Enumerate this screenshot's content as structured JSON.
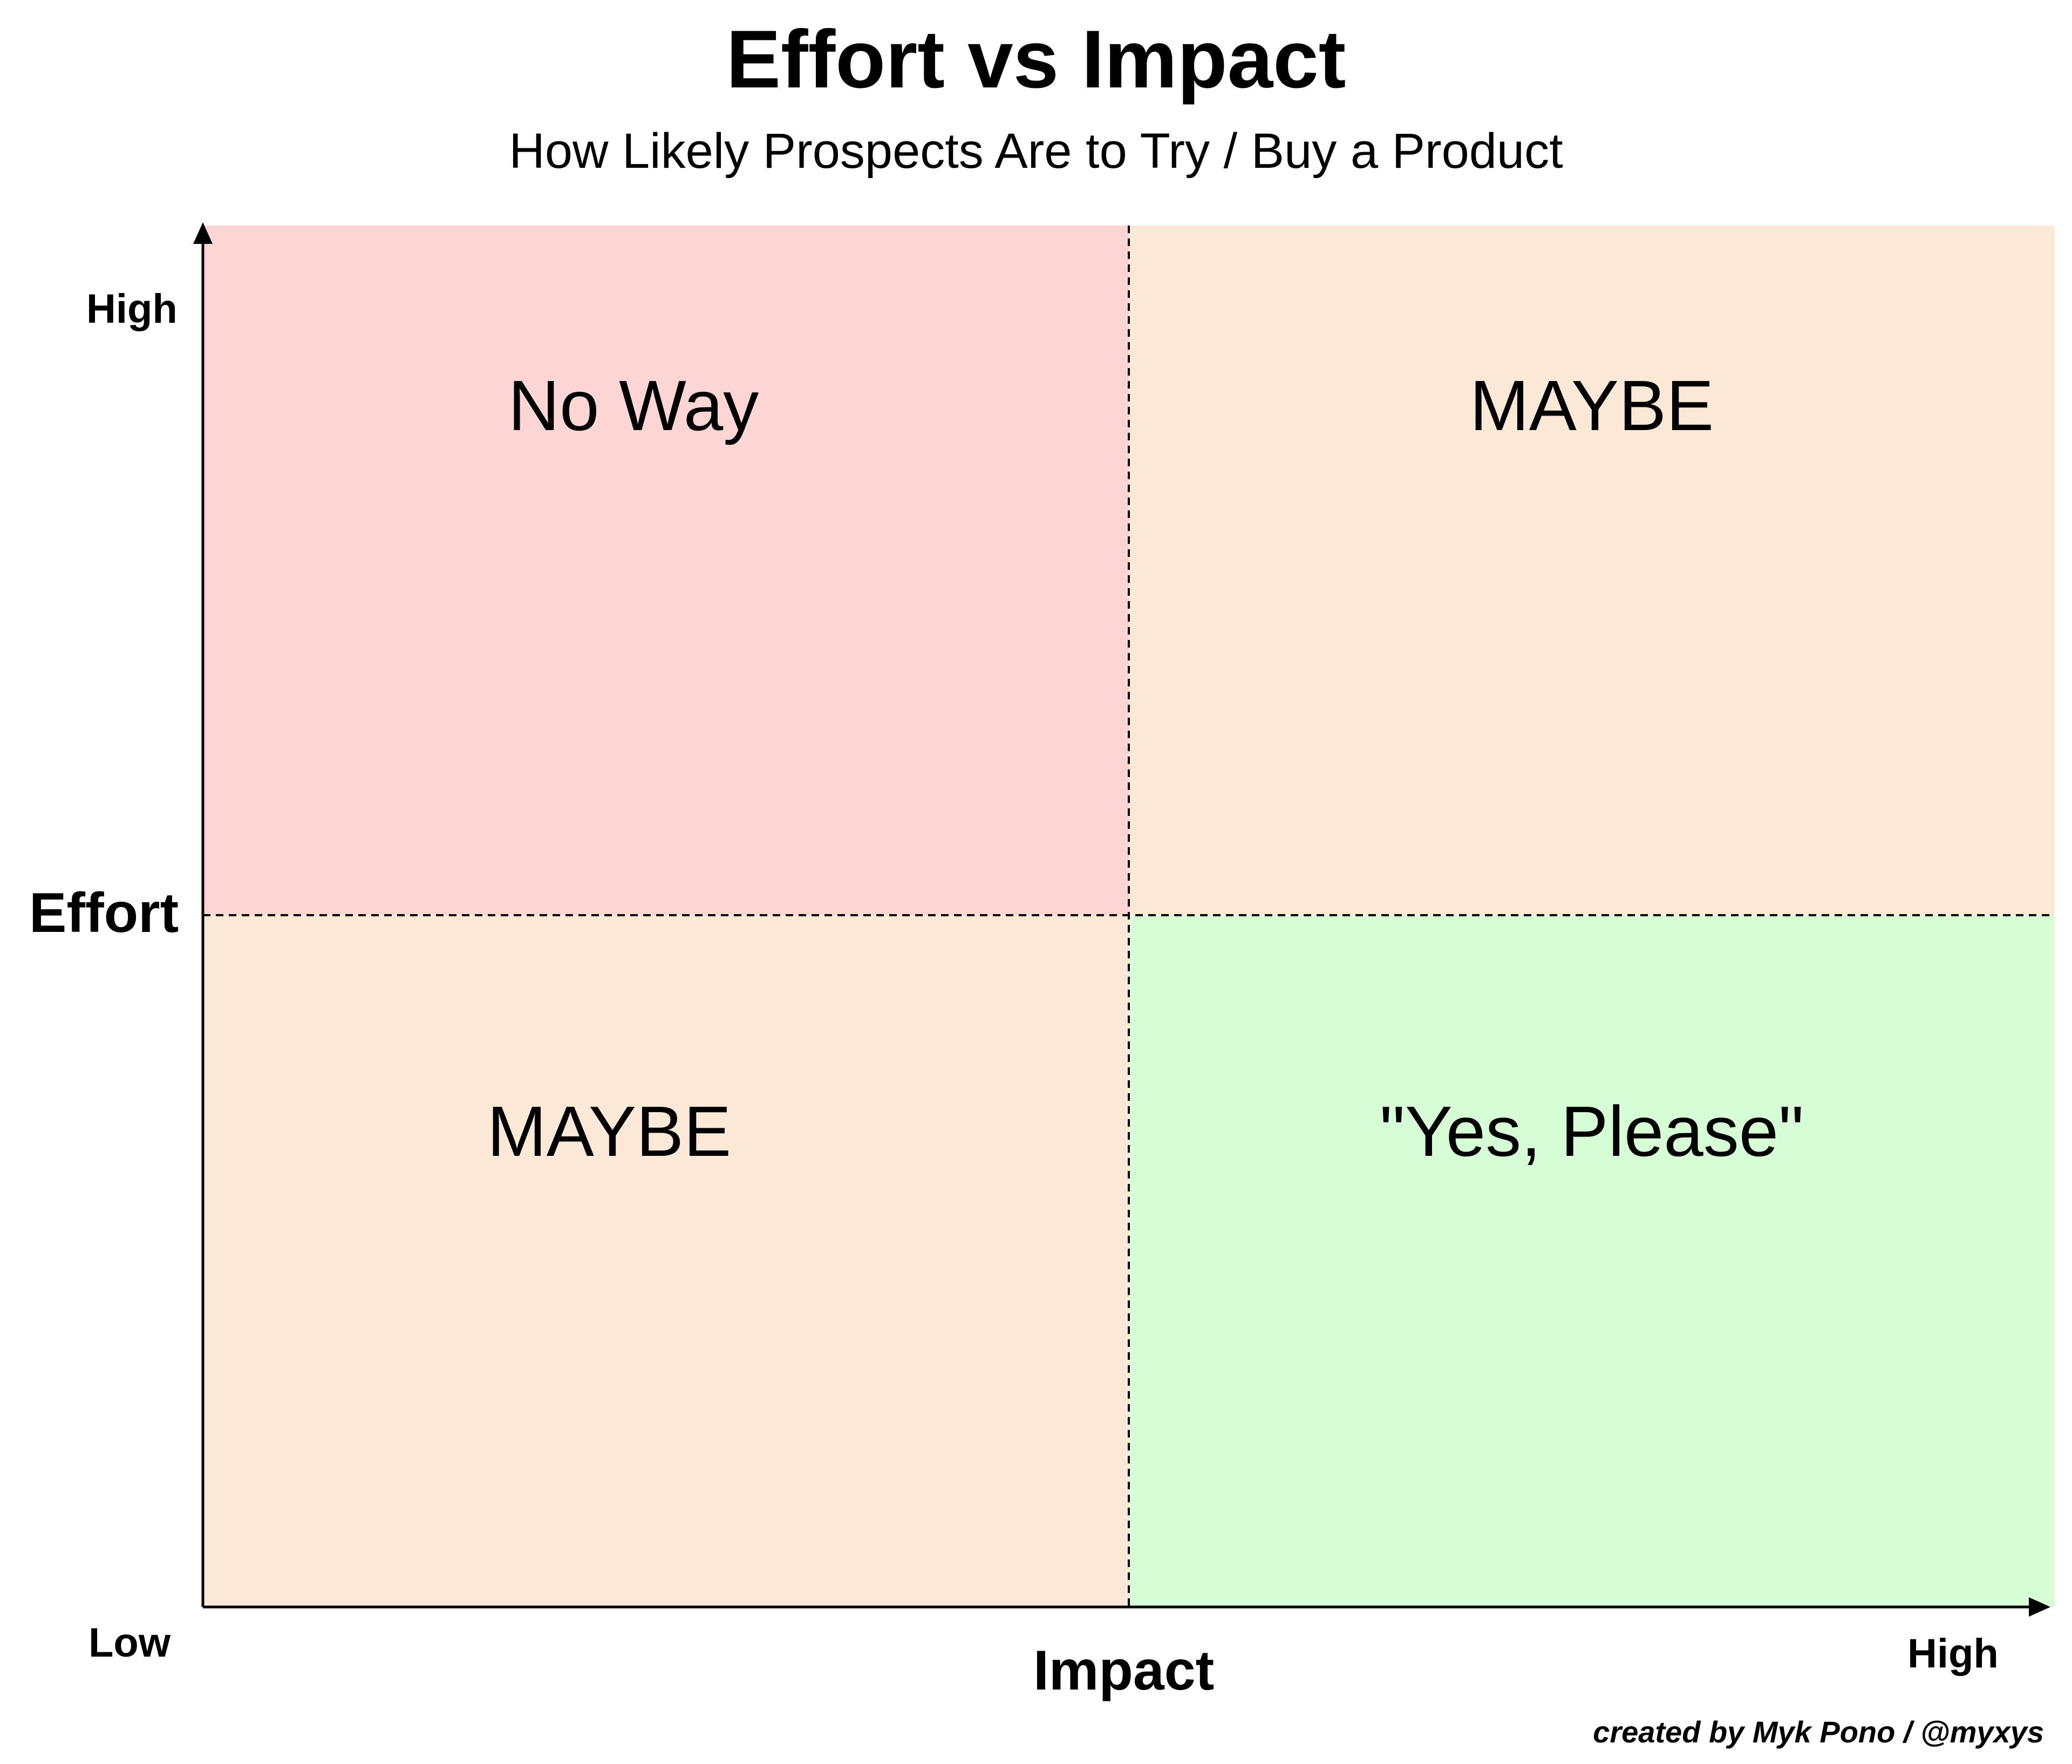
{
  "title": "Effort vs Impact",
  "subtitle": "How Likely Prospects Are to Try / Buy a Product",
  "colors": {
    "no_way": "#fed5d5",
    "maybe": "#fce8d6",
    "yes_please": "#d6fdd5",
    "axis": "#000000"
  },
  "quadrants": {
    "top_left": "No Way",
    "top_right": "MAYBE",
    "bottom_left": "MAYBE",
    "bottom_right": "\"Yes, Please\""
  },
  "y_axis": {
    "title": "Effort",
    "high_label": "High"
  },
  "x_axis": {
    "title": "Impact",
    "low_label": "Low",
    "high_label": "High"
  },
  "credit": "created by Myk Pono / @myxys"
}
